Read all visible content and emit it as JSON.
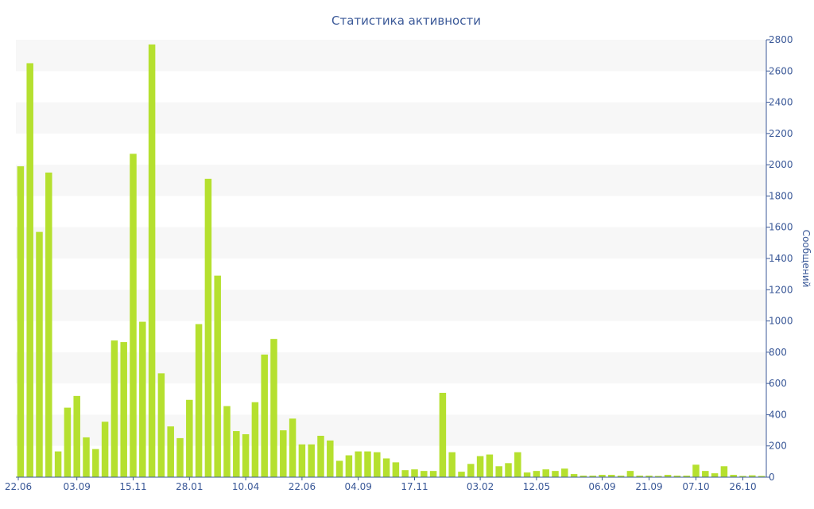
{
  "chart_data": {
    "type": "bar",
    "title": "Статистика активности",
    "ylabel": "Сообщений",
    "ylim": [
      0,
      2800
    ],
    "yticks": [
      0,
      200,
      400,
      600,
      800,
      1000,
      1200,
      1400,
      1600,
      1800,
      2000,
      2200,
      2400,
      2600,
      2800
    ],
    "ytick_labels": [
      "0",
      "200",
      "400",
      "600",
      "800",
      "1000",
      "1200",
      "1400",
      "1600",
      "1800",
      "2000",
      "2200",
      "2400",
      "2600",
      "2800"
    ],
    "xtick_labels": [
      "22.06",
      "03.09",
      "15.11",
      "28.01",
      "10.04",
      "22.06",
      "04.09",
      "17.11",
      "03.02",
      "12.05",
      "06.09",
      "21.09",
      "07.10",
      "26.10"
    ],
    "xtick_indices": [
      0,
      6,
      12,
      18,
      24,
      30,
      36,
      42,
      49,
      55,
      62,
      67,
      72,
      77
    ],
    "y_axis_side": "right",
    "grid": "alternating horizontal bands",
    "bar_color": "#b5e02f",
    "values": [
      1990,
      2650,
      1570,
      1950,
      165,
      445,
      520,
      255,
      180,
      355,
      875,
      865,
      2070,
      995,
      2770,
      665,
      325,
      250,
      495,
      980,
      1910,
      1290,
      455,
      295,
      275,
      480,
      785,
      885,
      300,
      375,
      210,
      210,
      265,
      235,
      105,
      140,
      165,
      165,
      160,
      120,
      95,
      45,
      50,
      40,
      40,
      540,
      160,
      35,
      85,
      135,
      145,
      70,
      90,
      160,
      30,
      40,
      50,
      40,
      55,
      20,
      10,
      10,
      15,
      15,
      10,
      40,
      10,
      10,
      8,
      15,
      10,
      10,
      80,
      40,
      25,
      70,
      15,
      8,
      12,
      8
    ]
  }
}
